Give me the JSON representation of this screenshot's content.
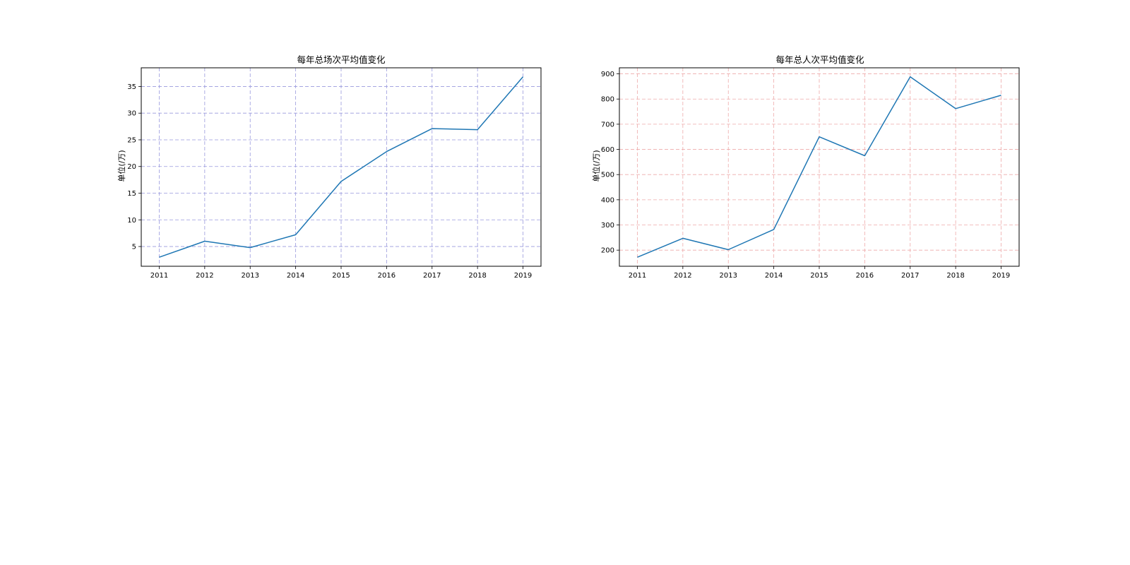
{
  "chart_data": [
    {
      "type": "line",
      "title": "每年总场次平均值变化",
      "xlabel": "",
      "ylabel": "单位(/万)",
      "x": [
        2011,
        2012,
        2013,
        2014,
        2015,
        2016,
        2017,
        2018,
        2019
      ],
      "xtick_labels": [
        "2011",
        "2012",
        "2013",
        "2014",
        "2015",
        "2016",
        "2017",
        "2018",
        "2019"
      ],
      "series": [
        {
          "values": [
            3.0,
            6.0,
            4.8,
            7.2,
            17.2,
            22.8,
            27.1,
            26.9,
            36.8
          ],
          "color": "#1f77b4"
        }
      ],
      "yticks": [
        5,
        10,
        15,
        20,
        25,
        30,
        35
      ],
      "ylim": [
        1.3,
        38.5
      ],
      "grid": true,
      "grid_color": "#9999dd"
    },
    {
      "type": "line",
      "title": "每年总人次平均值变化",
      "xlabel": "",
      "ylabel": "单位(/万)",
      "x": [
        2011,
        2012,
        2013,
        2014,
        2015,
        2016,
        2017,
        2018,
        2019
      ],
      "xtick_labels": [
        "2011",
        "2012",
        "2013",
        "2014",
        "2015",
        "2016",
        "2017",
        "2018",
        "2019"
      ],
      "series": [
        {
          "values": [
            172,
            247,
            202,
            282,
            650,
            575,
            888,
            762,
            815
          ],
          "color": "#1f77b4"
        }
      ],
      "yticks": [
        200,
        300,
        400,
        500,
        600,
        700,
        800,
        900
      ],
      "ylim": [
        136,
        924
      ],
      "grid": true,
      "grid_color": "#eeaaaa"
    }
  ]
}
